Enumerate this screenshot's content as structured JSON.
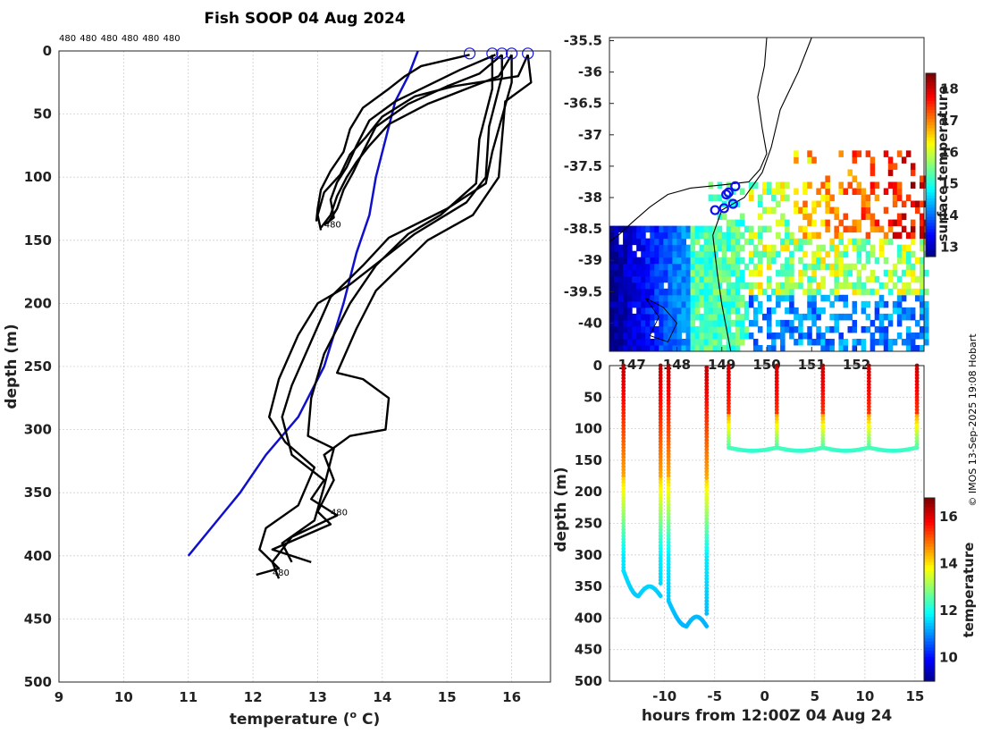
{
  "chart_data": [
    {
      "type": "line",
      "name": "profile-chart",
      "title": "Fish SOOP 04 Aug 2024",
      "xlabel": "temperature (",
      "xlabel_sup": "o",
      "xlabel_unit": " C)",
      "ylabel": "depth (m)",
      "xlim": [
        9,
        16.6
      ],
      "ylim": [
        0,
        500
      ],
      "xticks": [
        "9",
        "10",
        "11",
        "12",
        "13",
        "14",
        "15",
        "16"
      ],
      "yticks": [
        "0",
        "50",
        "100",
        "150",
        "200",
        "250",
        "300",
        "350",
        "400",
        "450",
        "500"
      ],
      "top_labels": [
        "480",
        "480",
        "480",
        "480",
        "480",
        "480"
      ],
      "end_labels": [
        {
          "text": "480",
          "t": 13.1,
          "d": 137
        },
        {
          "text": "480",
          "t": 13.2,
          "d": 365
        },
        {
          "text": "480",
          "t": 12.3,
          "d": 413
        }
      ],
      "circles_t": [
        15.35,
        15.7,
        15.85,
        16.0,
        16.25
      ],
      "climatology": {
        "color": "#1010cc",
        "points": [
          [
            14.55,
            0
          ],
          [
            14.4,
            20
          ],
          [
            14.2,
            40
          ],
          [
            14.05,
            70
          ],
          [
            13.9,
            100
          ],
          [
            13.8,
            130
          ],
          [
            13.6,
            160
          ],
          [
            13.4,
            200
          ],
          [
            13.1,
            250
          ],
          [
            12.7,
            290
          ],
          [
            12.2,
            320
          ],
          [
            11.8,
            350
          ],
          [
            11.4,
            375
          ],
          [
            11.0,
            400
          ]
        ]
      },
      "profiles": [
        [
          [
            15.35,
            3
          ],
          [
            14.6,
            12
          ],
          [
            14.35,
            20
          ],
          [
            14.1,
            30
          ],
          [
            13.7,
            45
          ],
          [
            13.5,
            62
          ],
          [
            13.4,
            80
          ],
          [
            13.2,
            95
          ],
          [
            13.05,
            110
          ],
          [
            13.0,
            125
          ],
          [
            12.98,
            135
          ]
        ],
        [
          [
            15.75,
            3
          ],
          [
            15.2,
            15
          ],
          [
            14.8,
            25
          ],
          [
            14.2,
            40
          ],
          [
            13.8,
            55
          ],
          [
            13.6,
            75
          ],
          [
            13.45,
            92
          ],
          [
            13.3,
            104
          ],
          [
            13.2,
            118
          ],
          [
            13.25,
            132
          ],
          [
            13.1,
            138
          ]
        ],
        [
          [
            15.85,
            3
          ],
          [
            15.5,
            18
          ],
          [
            15.0,
            28
          ],
          [
            14.4,
            42
          ],
          [
            13.9,
            60
          ],
          [
            13.7,
            80
          ],
          [
            13.55,
            96
          ],
          [
            13.4,
            110
          ],
          [
            13.3,
            125
          ],
          [
            13.15,
            137
          ]
        ],
        [
          [
            16.0,
            3
          ],
          [
            15.8,
            20
          ],
          [
            15.3,
            30
          ],
          [
            14.7,
            42
          ],
          [
            14.1,
            58
          ],
          [
            13.8,
            75
          ],
          [
            13.6,
            88
          ],
          [
            13.45,
            100
          ],
          [
            13.3,
            115
          ],
          [
            13.2,
            130
          ],
          [
            13.05,
            140
          ]
        ],
        [
          [
            16.25,
            3
          ],
          [
            16.1,
            20
          ],
          [
            15.1,
            28
          ],
          [
            14.5,
            36
          ],
          [
            14.0,
            52
          ],
          [
            13.75,
            68
          ],
          [
            13.5,
            82
          ],
          [
            13.35,
            98
          ],
          [
            13.1,
            112
          ],
          [
            13.0,
            130
          ],
          [
            13.05,
            142
          ]
        ],
        [
          [
            15.85,
            3
          ],
          [
            15.85,
            20
          ],
          [
            15.65,
            60
          ],
          [
            15.6,
            100
          ],
          [
            15.3,
            120
          ],
          [
            14.5,
            145
          ],
          [
            14.0,
            165
          ],
          [
            13.5,
            185
          ],
          [
            13.0,
            200
          ],
          [
            12.7,
            225
          ],
          [
            12.4,
            260
          ],
          [
            12.25,
            290
          ],
          [
            12.5,
            310
          ],
          [
            12.95,
            330
          ],
          [
            12.7,
            360
          ],
          [
            12.2,
            378
          ],
          [
            12.1,
            395
          ],
          [
            12.4,
            410
          ],
          [
            12.05,
            415
          ]
        ],
        [
          [
            16.0,
            3
          ],
          [
            16.0,
            25
          ],
          [
            15.7,
            80
          ],
          [
            15.6,
            105
          ],
          [
            15.0,
            125
          ],
          [
            14.1,
            148
          ],
          [
            13.7,
            170
          ],
          [
            13.2,
            195
          ],
          [
            12.9,
            230
          ],
          [
            12.6,
            265
          ],
          [
            12.45,
            290
          ],
          [
            12.6,
            320
          ],
          [
            13.1,
            340
          ],
          [
            12.9,
            355
          ],
          [
            13.3,
            368
          ],
          [
            12.6,
            385
          ],
          [
            12.3,
            405
          ],
          [
            12.4,
            418
          ]
        ],
        [
          [
            16.25,
            3
          ],
          [
            16.3,
            25
          ],
          [
            15.9,
            40
          ],
          [
            15.8,
            100
          ],
          [
            15.4,
            130
          ],
          [
            14.7,
            150
          ],
          [
            14.3,
            170
          ],
          [
            13.9,
            190
          ],
          [
            13.6,
            220
          ],
          [
            13.3,
            255
          ],
          [
            13.7,
            260
          ],
          [
            14.1,
            275
          ],
          [
            14.05,
            300
          ],
          [
            13.5,
            305
          ],
          [
            13.1,
            320
          ],
          [
            13.25,
            340
          ],
          [
            13.0,
            365
          ],
          [
            13.2,
            375
          ],
          [
            12.3,
            395
          ],
          [
            12.9,
            405
          ]
        ],
        [
          [
            15.7,
            3
          ],
          [
            15.7,
            30
          ],
          [
            15.5,
            70
          ],
          [
            15.45,
            105
          ],
          [
            14.9,
            130
          ],
          [
            14.4,
            145
          ],
          [
            13.9,
            170
          ],
          [
            13.5,
            200
          ],
          [
            13.1,
            240
          ],
          [
            12.9,
            275
          ],
          [
            12.85,
            305
          ],
          [
            13.25,
            315
          ],
          [
            13.1,
            345
          ],
          [
            12.95,
            372
          ],
          [
            12.45,
            390
          ],
          [
            12.6,
            405
          ]
        ]
      ]
    },
    {
      "type": "heatmap",
      "name": "sst-map",
      "xlim": [
        146.5,
        153.5
      ],
      "ylim": [
        -40.45,
        -35.45
      ],
      "yticks": [
        "-35.5",
        "-36",
        "-36.5",
        "-37",
        "-37.5",
        "-38",
        "-38.5",
        "-39",
        "-39.5",
        "-40"
      ],
      "xticks": [
        "147",
        "148",
        "149",
        "150",
        "151",
        "152"
      ],
      "colorbar_label": "surface temperature",
      "colorbar_ticks": [
        "13",
        "14",
        "15",
        "16",
        "17",
        "18"
      ],
      "colorbar_range": [
        12.7,
        18.5
      ],
      "stations": [
        [
          149.3,
          -37.82
        ],
        [
          149.15,
          -37.92
        ],
        [
          149.1,
          -37.95
        ],
        [
          149.25,
          -38.1
        ],
        [
          149.05,
          -38.17
        ],
        [
          148.85,
          -38.2
        ]
      ]
    },
    {
      "type": "scatter",
      "name": "time-depth-section",
      "xlabel": "hours from 12:00Z 04 Aug 24",
      "ylabel": "depth (m)",
      "xlim": [
        -15.5,
        15.9
      ],
      "ylim": [
        0,
        500
      ],
      "xticks": [
        "-10",
        "-5",
        "0",
        "5",
        "10",
        "15"
      ],
      "yticks": [
        "0",
        "50",
        "100",
        "150",
        "200",
        "250",
        "300",
        "350",
        "400",
        "450",
        "500"
      ],
      "colorbar_label": "temperature",
      "colorbar_ticks": [
        "10",
        "12",
        "14",
        "16"
      ],
      "colorbar_range": [
        9,
        16.8
      ]
    }
  ],
  "watermark": "© IMOS 13-Sep-2025 19:08 Hobart"
}
